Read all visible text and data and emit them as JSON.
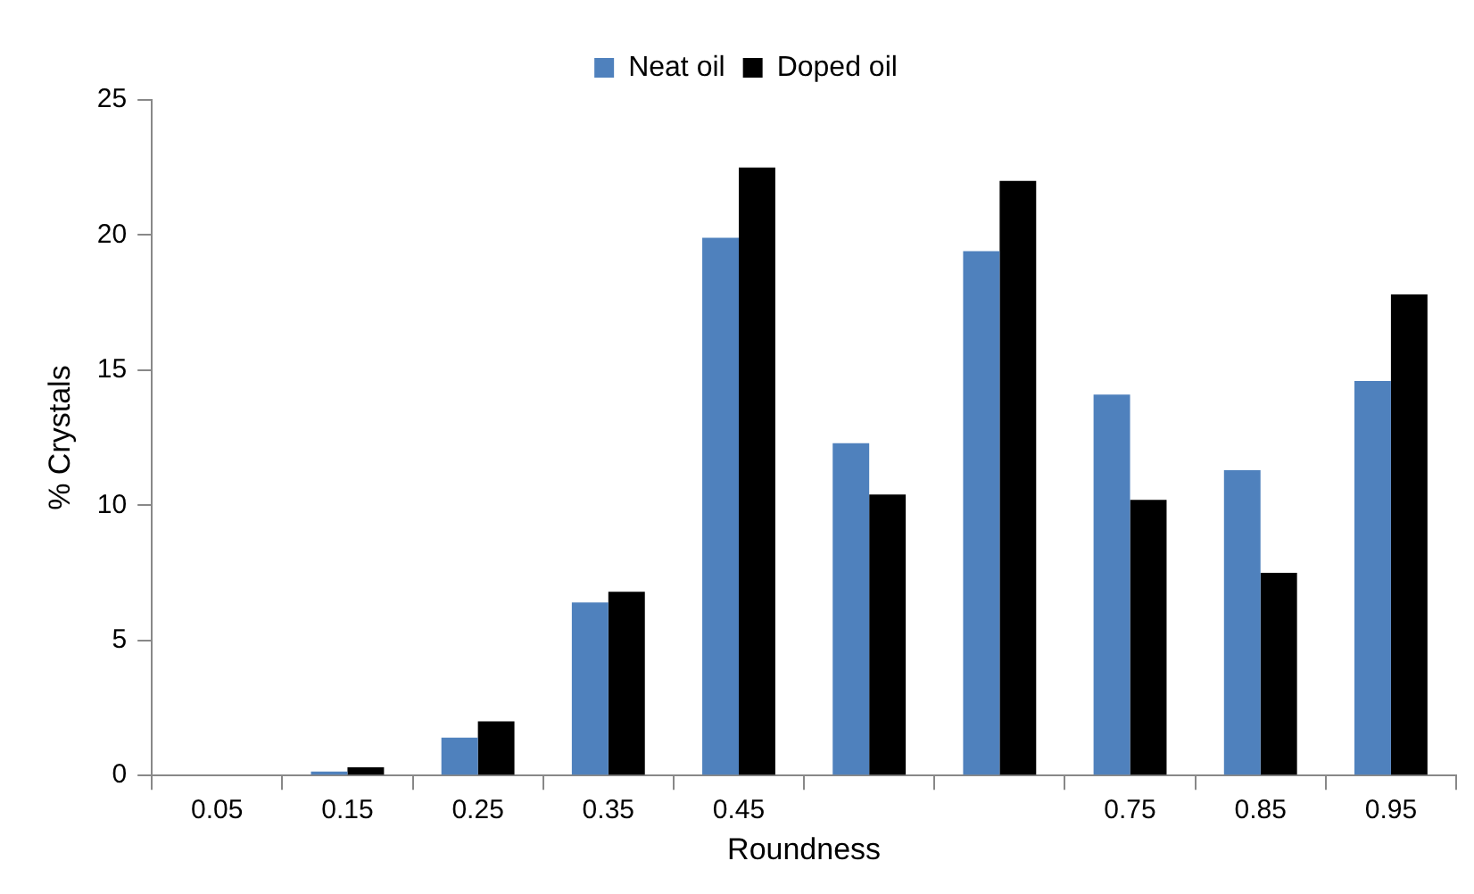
{
  "chart_data": {
    "type": "bar",
    "xlabel": "Roundness",
    "ylabel": "% Crystals",
    "categories": [
      "0.05",
      "0.15",
      "0.25",
      "0.35",
      "0.45",
      null,
      null,
      "0.75",
      "0.85",
      "0.95"
    ],
    "series": [
      {
        "name": "Neat oil",
        "color": "#4f81bd",
        "values": [
          0,
          0.15,
          1.4,
          6.4,
          19.9,
          12.3,
          19.4,
          14.1,
          11.3,
          14.6
        ]
      },
      {
        "name": "Doped oil",
        "color": "#000000",
        "values": [
          0,
          0.3,
          2.0,
          6.8,
          22.5,
          10.4,
          22.0,
          10.2,
          7.5,
          17.8
        ]
      }
    ],
    "ylim": [
      0,
      25
    ],
    "yticks": [
      0,
      5,
      10,
      15,
      20,
      25
    ],
    "grid": false,
    "legend": "top"
  }
}
